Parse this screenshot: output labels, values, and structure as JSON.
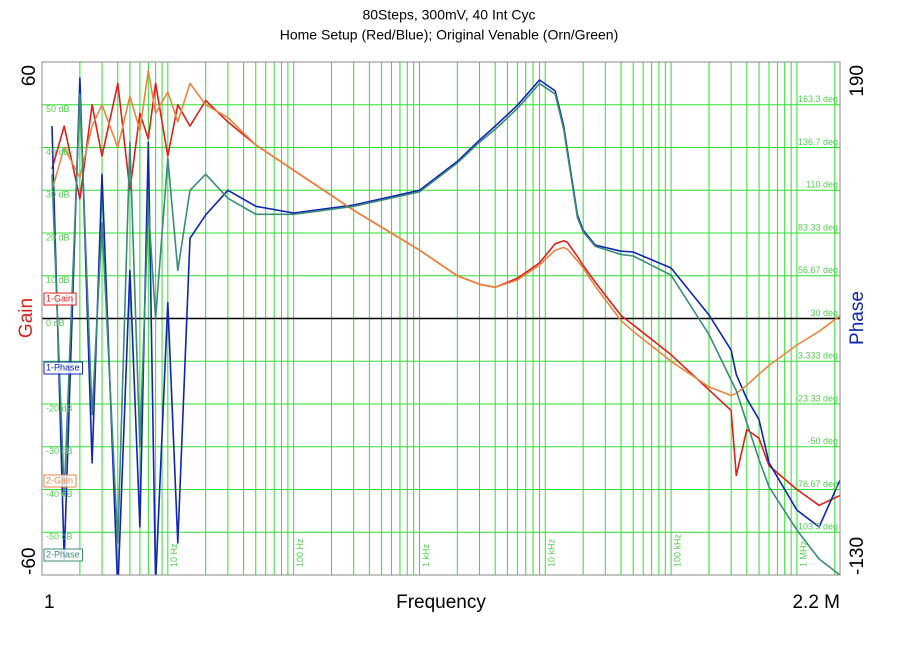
{
  "chart_data": {
    "type": "bode",
    "title": "80Steps, 300mV, 40 Int Cyc",
    "subtitle": "Home Setup (Red/Blue); Original Venable (Orn/Green)",
    "x_label": "Frequency",
    "y_label": "Gain",
    "y2_label": "Phase",
    "log_x": true,
    "xlim": [
      1,
      2200000
    ],
    "xticks": [
      {
        "value": 1,
        "label": "1"
      },
      {
        "value": 2200000,
        "label": "2.2 M"
      }
    ],
    "xgrid": [
      {
        "value": 10,
        "label": "10 Hz"
      },
      {
        "value": 100,
        "label": "100 Hz"
      },
      {
        "value": 1000,
        "label": "1 kHz"
      },
      {
        "value": 10000,
        "label": "10 kHz"
      },
      {
        "value": 100000,
        "label": "100 kHz"
      },
      {
        "value": 1000000,
        "label": "1 MHz"
      }
    ],
    "xgrid_minor": [
      2,
      3,
      4,
      5,
      6,
      7,
      8,
      9,
      20,
      30,
      40,
      50,
      60,
      70,
      80,
      90,
      200,
      300,
      400,
      500,
      600,
      700,
      800,
      900,
      2000,
      3000,
      4000,
      5000,
      6000,
      7000,
      8000,
      9000,
      20000,
      30000,
      40000,
      50000,
      60000,
      70000,
      80000,
      90000,
      200000,
      300000,
      400000,
      500000,
      600000,
      700000,
      800000,
      900000,
      2000000
    ],
    "ylim": [
      -60,
      60
    ],
    "yticks": [
      -60,
      60
    ],
    "ygrid": [
      {
        "value": 50,
        "label": "50 dB"
      },
      {
        "value": 40,
        "label": "40 dB"
      },
      {
        "value": 30,
        "label": "30 dB"
      },
      {
        "value": 20,
        "label": "20 dB"
      },
      {
        "value": 10,
        "label": "10 dB"
      },
      {
        "value": 0,
        "label": "0 dB"
      },
      {
        "value": -10,
        "label": "-10 dB"
      },
      {
        "value": -20,
        "label": "-20 dB"
      },
      {
        "value": -30,
        "label": "-30 dB"
      },
      {
        "value": -40,
        "label": "-40 dB"
      },
      {
        "value": -50,
        "label": "-50 dB"
      }
    ],
    "y2lim": [
      -130,
      190
    ],
    "y2ticks": [
      -130,
      190
    ],
    "y2grid": [
      {
        "value": 163.3,
        "label": "163.3 deg"
      },
      {
        "value": 136.7,
        "label": "136.7 deg"
      },
      {
        "value": 110,
        "label": "110 deg"
      },
      {
        "value": 83.33,
        "label": "83.33 deg"
      },
      {
        "value": 56.67,
        "label": "56.67 deg"
      },
      {
        "value": 30,
        "label": "30 deg"
      },
      {
        "value": 3.333,
        "label": "3.333 deg"
      },
      {
        "value": -23.33,
        "label": "-23.33 deg"
      },
      {
        "value": -50,
        "label": "-50 deg"
      },
      {
        "value": -76.67,
        "label": "-76.67 deg"
      },
      {
        "value": -103.3,
        "label": "-103.3 deg"
      }
    ],
    "grid": true,
    "x": [
      1.2,
      1.5,
      2,
      2.5,
      3,
      4,
      5,
      6,
      7,
      8,
      10,
      12,
      15,
      20,
      30,
      50,
      100,
      300,
      1000,
      2000,
      3000,
      4000,
      6000,
      9000,
      12000,
      14000,
      15000,
      18000,
      20000,
      25000,
      40000,
      50000,
      100000,
      200000,
      300000,
      330000,
      400000,
      500000,
      600000,
      1000000,
      1500000,
      2200000
    ],
    "series": [
      {
        "name": "1-Gain",
        "color": "#e01f1a",
        "axis": "y",
        "values": [
          35,
          45,
          28,
          50,
          38,
          55,
          30,
          48,
          42,
          55,
          38,
          50,
          45,
          51,
          46,
          40.6,
          34.7,
          25.3,
          16,
          10,
          8,
          7.3,
          9.4,
          13,
          17.5,
          18.2,
          17.8,
          14.5,
          12.4,
          8.5,
          0.7,
          -1.5,
          -8.5,
          -16.7,
          -21.5,
          -36.7,
          -26,
          -28,
          -34.4,
          -40,
          -43.7,
          -41.4
        ]
      },
      {
        "name": "1-Phase",
        "color": "#1024b4",
        "axis": "y2",
        "values": [
          150,
          -120,
          180,
          -60,
          120,
          -140,
          60,
          -100,
          140,
          -135,
          40,
          -110,
          80,
          94.6,
          110,
          100,
          95.8,
          100.8,
          110,
          128,
          141.3,
          150,
          163,
          178.8,
          172,
          150,
          135,
          94.6,
          85,
          75.8,
          72,
          71.5,
          61.5,
          32.2,
          10.3,
          -5,
          -20,
          -33,
          -60,
          -89.5,
          -100,
          -70.8
        ]
      },
      {
        "name": "2-Gain",
        "color": "#ea8540",
        "axis": "y",
        "values": [
          30,
          40,
          33,
          45,
          50,
          40,
          52,
          44,
          58,
          48,
          53,
          46,
          55,
          50,
          47,
          40.6,
          34.7,
          25.3,
          16,
          10,
          8,
          7.3,
          9,
          12.5,
          16,
          16.6,
          16.2,
          13.5,
          11.8,
          7.5,
          -0.5,
          -3,
          -10,
          -16,
          -18,
          -17.5,
          -15.6,
          -13,
          -11,
          -6.2,
          -3,
          0.6
        ]
      },
      {
        "name": "2-Phase",
        "color": "#3c8a78",
        "axis": "y2",
        "values": [
          120,
          -80,
          170,
          -30,
          90,
          -110,
          140,
          -50,
          100,
          30,
          130,
          60,
          110,
          120,
          105,
          95,
          95,
          100,
          109,
          127,
          140,
          148,
          161,
          176.5,
          170,
          148,
          133,
          93,
          84,
          75,
          70,
          69,
          57,
          20,
          -8.4,
          -15,
          -35,
          -58,
          -75,
          -102,
          -120,
          -130
        ]
      }
    ]
  }
}
